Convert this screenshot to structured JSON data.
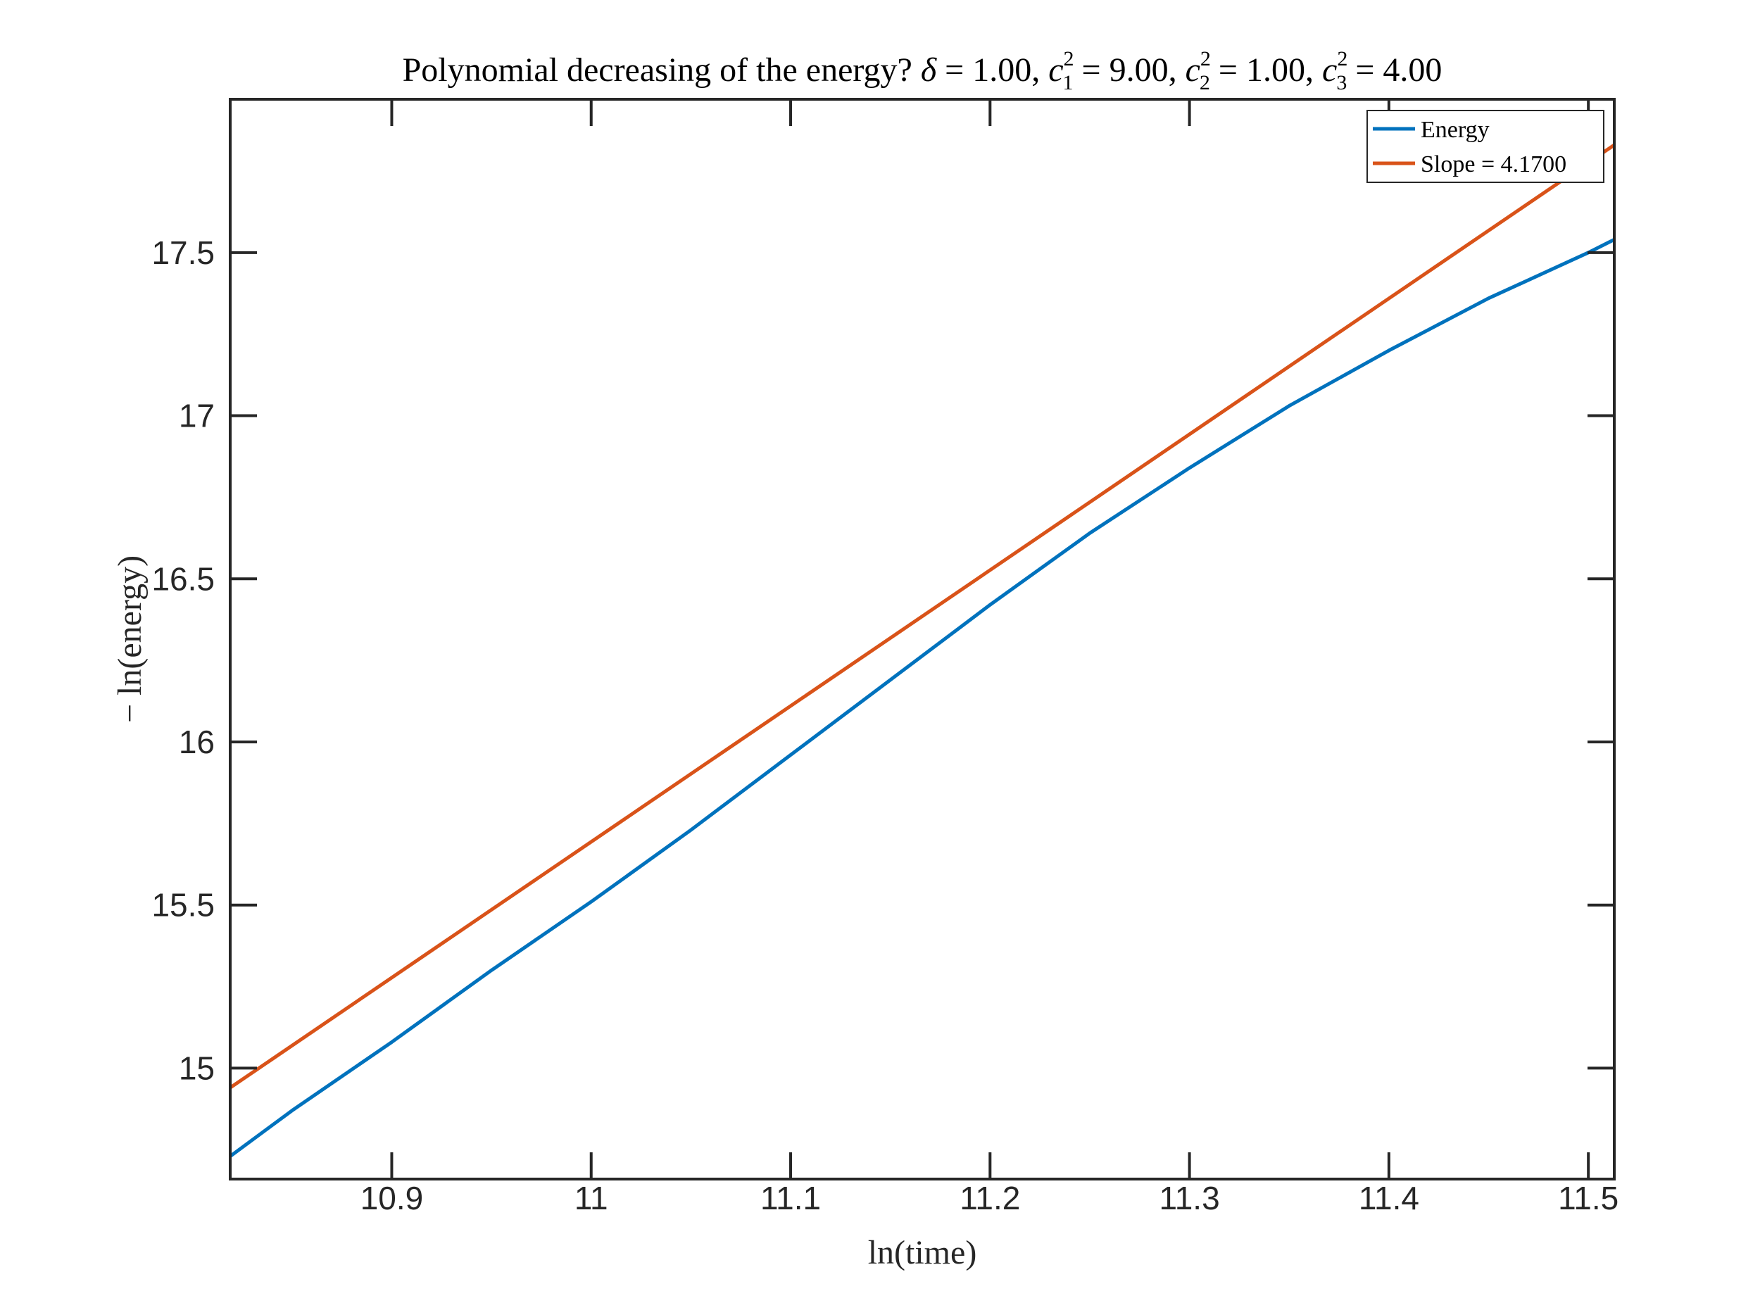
{
  "chart_data": {
    "type": "line",
    "title": {
      "prefix": "Polynomial decreasing of the energy? ",
      "delta": "δ",
      "delta_value": " = 1.00, ",
      "c1": "c",
      "c1_sup": "2",
      "c1_sub": "1",
      "c1_value": " = 9.00, ",
      "c2": "c",
      "c2_sup": "2",
      "c2_sub": "2",
      "c2_value": " = 1.00, ",
      "c3": "c",
      "c3_sup": "2",
      "c3_sub": "3",
      "c3_value": " = 4.00"
    },
    "xlabel": "ln(time)",
    "ylabel": "− ln(energy)",
    "xlim": [
      10.819,
      11.513
    ],
    "ylim": [
      14.66,
      17.97
    ],
    "xticks": [
      10.9,
      11.0,
      11.1,
      11.2,
      11.3,
      11.4,
      11.5
    ],
    "xtick_labels": [
      "10.9",
      "11",
      "11.1",
      "11.2",
      "11.3",
      "11.4",
      "11.5"
    ],
    "yticks": [
      15.0,
      15.5,
      16.0,
      16.5,
      17.0,
      17.5
    ],
    "ytick_labels": [
      "15",
      "15.5",
      "16",
      "16.5",
      "17",
      "17.5"
    ],
    "grid": false,
    "legend_position": "top-right",
    "series": [
      {
        "name": "Energy",
        "color": "#0072BD",
        "x": [
          10.819,
          10.85,
          10.9,
          10.95,
          11.0,
          11.05,
          11.1,
          11.15,
          11.2,
          11.25,
          11.3,
          11.35,
          11.4,
          11.45,
          11.5,
          11.513
        ],
        "y": [
          14.73,
          14.87,
          15.08,
          15.3,
          15.51,
          15.73,
          15.96,
          16.19,
          16.42,
          16.64,
          16.84,
          17.03,
          17.2,
          17.36,
          17.5,
          17.54
        ]
      },
      {
        "name": "Slope = 4.1700",
        "color": "#D95319",
        "x": [
          10.819,
          11.513
        ],
        "y": [
          14.94,
          17.83
        ]
      }
    ]
  }
}
